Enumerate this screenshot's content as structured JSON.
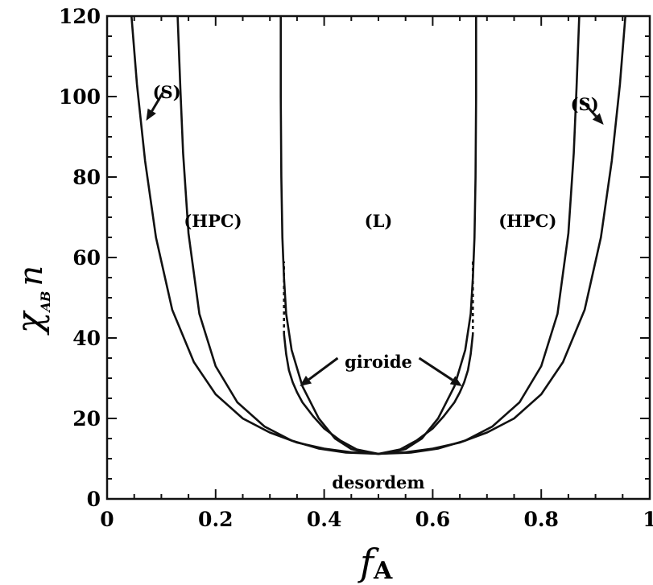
{
  "chart_data": {
    "type": "line",
    "title": "",
    "xlabel": "f",
    "xlabel_sub": "A",
    "ylabel": "χ",
    "ylabel_sub": "AB",
    "ylabel_suffix": "n",
    "xlim": [
      0,
      1
    ],
    "ylim": [
      0,
      120
    ],
    "x_ticks": [
      {
        "value": 0,
        "label": "0"
      },
      {
        "value": 0.2,
        "label": "0.2"
      },
      {
        "value": 0.4,
        "label": "0.4"
      },
      {
        "value": 0.6,
        "label": "0.6"
      },
      {
        "value": 0.8,
        "label": "0.8"
      },
      {
        "value": 1,
        "label": "1"
      }
    ],
    "y_ticks": [
      {
        "value": 0,
        "label": "0"
      },
      {
        "value": 20,
        "label": "20"
      },
      {
        "value": 40,
        "label": "40"
      },
      {
        "value": 60,
        "label": "60"
      },
      {
        "value": 80,
        "label": "80"
      },
      {
        "value": 100,
        "label": "100"
      },
      {
        "value": 120,
        "label": "120"
      }
    ],
    "grid": false,
    "series": [
      {
        "x": [
          0.045,
          0.055,
          0.07,
          0.09,
          0.12,
          0.16,
          0.2,
          0.25,
          0.3,
          0.35,
          0.4,
          0.45,
          0.5,
          0.55,
          0.6,
          0.65,
          0.7,
          0.75,
          0.8,
          0.84,
          0.88,
          0.91,
          0.93,
          0.945,
          0.955
        ],
        "y": [
          120,
          103,
          84,
          65,
          47,
          34,
          26,
          20,
          16.5,
          14,
          12.5,
          11.6,
          11.2,
          11.6,
          12.5,
          14,
          16.5,
          20,
          26,
          34,
          47,
          65,
          84,
          103,
          120
        ]
      },
      {
        "x": [
          0.13,
          0.135,
          0.14,
          0.15,
          0.17,
          0.2,
          0.24,
          0.29,
          0.34,
          0.39,
          0.44,
          0.5,
          0.56,
          0.61,
          0.66,
          0.71,
          0.76,
          0.8,
          0.83,
          0.85,
          0.86,
          0.865,
          0.87
        ],
        "y": [
          120,
          102,
          86,
          66,
          46,
          33,
          24,
          18,
          14.5,
          12.5,
          11.5,
          11.2,
          11.5,
          12.5,
          14.5,
          18,
          24,
          33,
          46,
          66,
          86,
          102,
          120
        ]
      },
      {
        "x": [
          0.32,
          0.32,
          0.321,
          0.323,
          0.326,
          0.33,
          0.34,
          0.36,
          0.39,
          0.42,
          0.45,
          0.48,
          0.5,
          0.52,
          0.55,
          0.58,
          0.61,
          0.64,
          0.66,
          0.67,
          0.674,
          0.677,
          0.679,
          0.68,
          0.68
        ],
        "y": [
          120,
          100,
          80,
          65,
          55,
          46,
          37,
          28,
          20,
          15,
          12.4,
          11.4,
          11.2,
          11.4,
          12.4,
          15,
          20,
          28,
          37,
          46,
          55,
          65,
          80,
          100,
          120
        ]
      },
      {
        "x": [
          0.326,
          0.33,
          0.335,
          0.342,
          0.35,
          0.36,
          0.38,
          0.4,
          0.43,
          0.46,
          0.5,
          0.54,
          0.57,
          0.6,
          0.62,
          0.64,
          0.65,
          0.658,
          0.665,
          0.67,
          0.674
        ],
        "y": [
          41,
          36,
          32,
          29,
          26.5,
          24,
          20.5,
          17.5,
          14.5,
          12.3,
          11.2,
          12.3,
          14.5,
          17.5,
          20.5,
          24,
          26.5,
          29,
          32,
          36,
          41
        ]
      },
      {
        "x": [
          0.326,
          0.326,
          0.674,
          0.674
        ],
        "y": [
          41,
          59,
          59,
          41
        ],
        "dashed": true
      }
    ],
    "annotations": [
      {
        "text": "(S)",
        "x": 0.11,
        "y": 101
      },
      {
        "text": "(S)",
        "x": 0.88,
        "y": 98
      },
      {
        "text": "(HPC)",
        "x": 0.195,
        "y": 69
      },
      {
        "text": "(L)",
        "x": 0.5,
        "y": 69
      },
      {
        "text": "(HPC)",
        "x": 0.775,
        "y": 69
      },
      {
        "text": "giroide",
        "x": 0.5,
        "y": 34
      },
      {
        "text": "desordem",
        "x": 0.5,
        "y": 4
      }
    ],
    "arrows": [
      {
        "from": [
          0.103,
          101
        ],
        "to": [
          0.072,
          94
        ]
      },
      {
        "from": [
          0.875,
          99
        ],
        "to": [
          0.915,
          93
        ]
      },
      {
        "from": [
          0.425,
          35
        ],
        "to": [
          0.355,
          28
        ]
      },
      {
        "from": [
          0.575,
          35
        ],
        "to": [
          0.654,
          28
        ]
      }
    ]
  }
}
